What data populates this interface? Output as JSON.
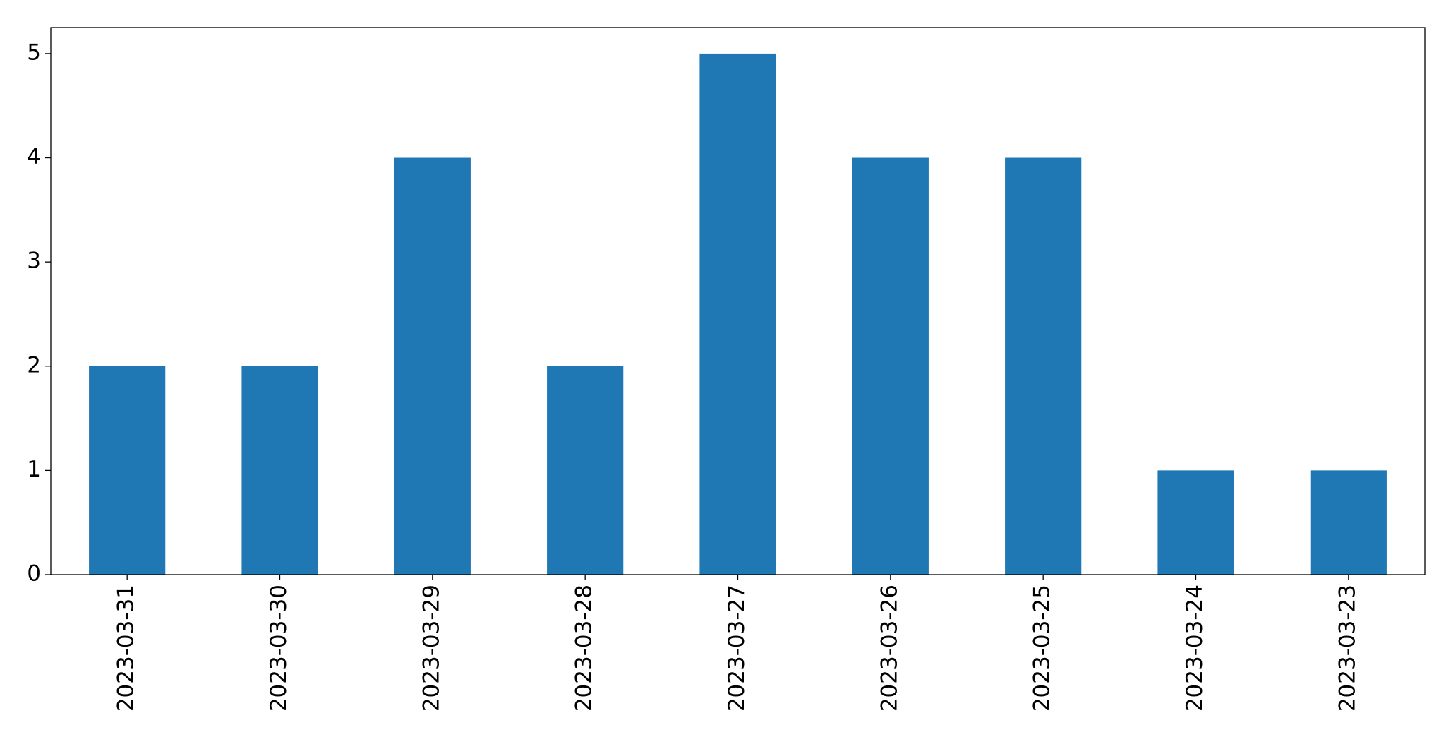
{
  "chart_data": {
    "type": "bar",
    "categories": [
      "2023-03-31",
      "2023-03-30",
      "2023-03-29",
      "2023-03-28",
      "2023-03-27",
      "2023-03-26",
      "2023-03-25",
      "2023-03-24",
      "2023-03-23"
    ],
    "values": [
      2,
      2,
      4,
      2,
      5,
      4,
      4,
      1,
      1
    ],
    "color": "#1f77b4",
    "ylim": [
      0,
      5.25
    ],
    "yticks": [
      0,
      1,
      2,
      3,
      4,
      5
    ],
    "grid": false
  }
}
